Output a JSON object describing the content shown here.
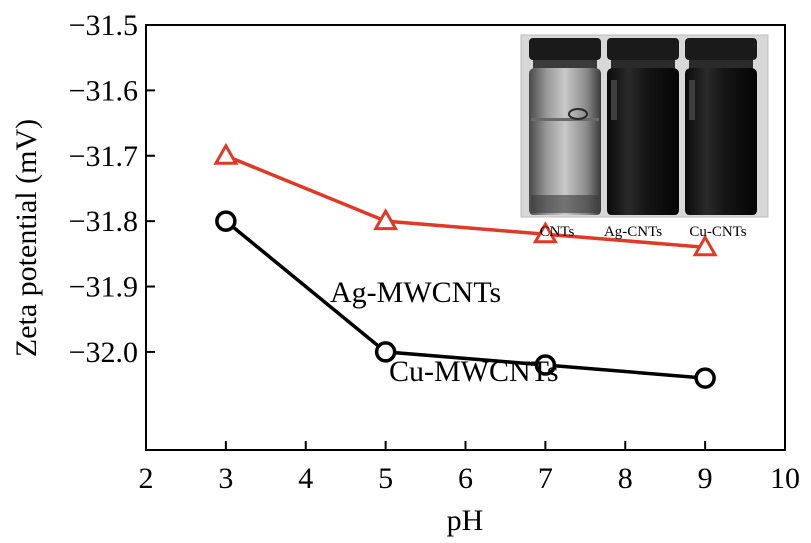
{
  "chart_data": {
    "type": "line",
    "title": "",
    "xlabel": "pH",
    "ylabel": "Zeta potential (mV)",
    "xlim": [
      2,
      10
    ],
    "ylim": [
      -32.15,
      -31.5
    ],
    "y_inverted": true,
    "x_ticks": [
      2,
      3,
      4,
      5,
      6,
      7,
      8,
      9,
      10
    ],
    "y_ticks": [
      -31.5,
      -31.6,
      -31.7,
      -31.8,
      -31.9,
      -32.0
    ],
    "y_tick_labels": [
      "−31.5",
      "−31.6",
      "−31.7",
      "−31.8",
      "−31.9",
      "−32.0"
    ],
    "grid": false,
    "series": [
      {
        "name": "Ag-MWCNTs",
        "color": "#e03a26",
        "marker": "triangle-open",
        "x": [
          3,
          5,
          7,
          9
        ],
        "y": [
          -31.7,
          -31.8,
          -31.82,
          -31.84
        ]
      },
      {
        "name": "Cu-MWCNTs",
        "color": "#000000",
        "marker": "circle-open",
        "x": [
          3,
          5,
          7,
          9
        ],
        "y": [
          -31.8,
          -32.0,
          -32.02,
          -32.04
        ]
      }
    ],
    "inset": {
      "description_icon": "photo-of-three-vials",
      "labels": [
        "CNTs",
        "Ag-CNTs",
        "Cu-CNTs"
      ]
    }
  }
}
